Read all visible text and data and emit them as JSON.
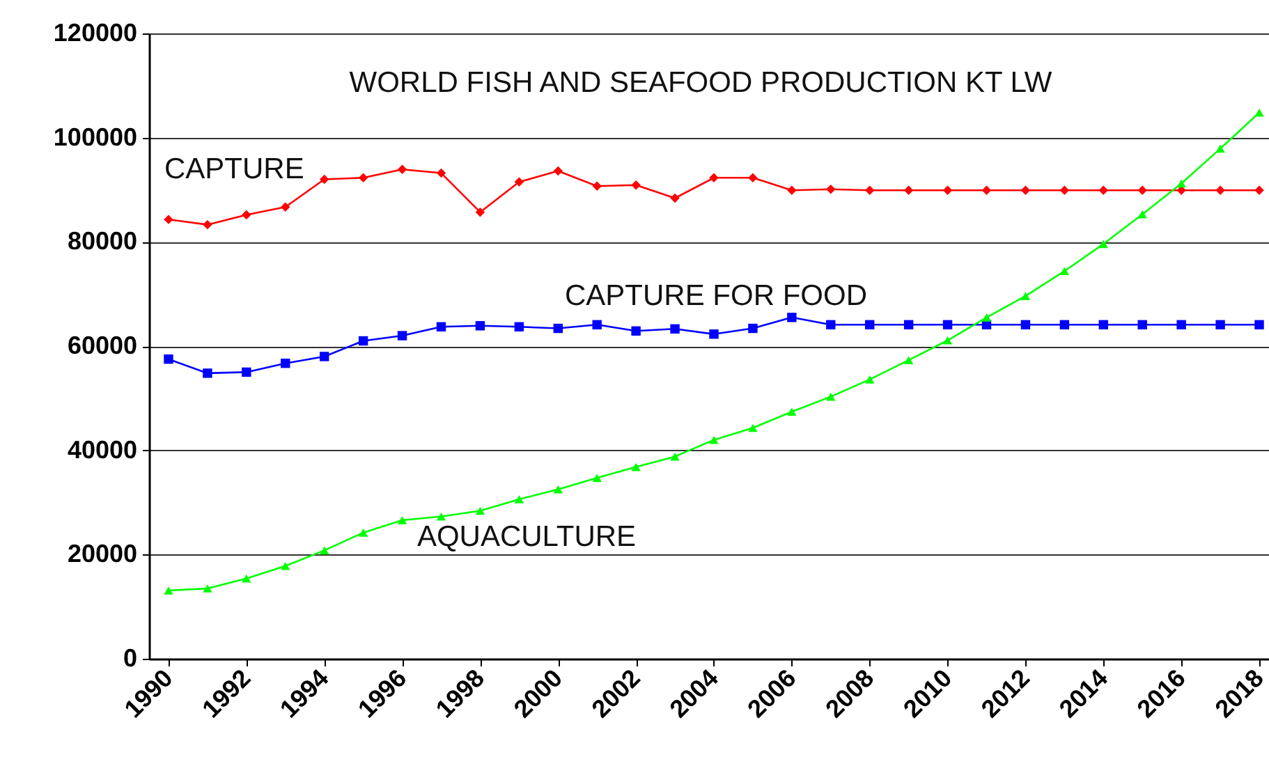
{
  "chart_data": {
    "type": "line",
    "title": "WORLD FISH AND SEAFOOD PRODUCTION KT LW",
    "x": [
      1990,
      1991,
      1992,
      1993,
      1994,
      1995,
      1996,
      1997,
      1998,
      1999,
      2000,
      2001,
      2002,
      2003,
      2004,
      2005,
      2006,
      2007,
      2008,
      2009,
      2010,
      2011,
      2012,
      2013,
      2014,
      2015,
      2016,
      2017,
      2018
    ],
    "series": [
      {
        "name": "CAPTURE",
        "color": "#ff0000",
        "marker": "diamond",
        "values": [
          84300,
          83300,
          85200,
          86700,
          92000,
          92300,
          93900,
          93200,
          85700,
          91500,
          93600,
          90700,
          90900,
          88400,
          92300,
          92300,
          89900,
          90100,
          89900,
          89900,
          89900,
          89900,
          89900,
          89900,
          89900,
          89900,
          89900,
          89900,
          89900
        ]
      },
      {
        "name": "CAPTURE FOR FOOD",
        "color": "#0000ff",
        "marker": "square",
        "values": [
          57500,
          54800,
          55000,
          56700,
          58000,
          61000,
          62000,
          63700,
          63900,
          63700,
          63400,
          64100,
          62900,
          63300,
          62300,
          63400,
          65500,
          64100,
          64100,
          64100,
          64100,
          64100,
          64100,
          64100,
          64100,
          64100,
          64100,
          64100,
          64100
        ]
      },
      {
        "name": "AQUACULTURE",
        "color": "#00ff00",
        "marker": "triangle",
        "values": [
          13100,
          13500,
          15400,
          17800,
          20800,
          24200,
          26600,
          27300,
          28400,
          30600,
          32500,
          34700,
          36800,
          38800,
          42000,
          44300,
          47400,
          50300,
          53600,
          57300,
          61100,
          65500,
          69600,
          74400,
          79600,
          85300,
          91200,
          97900,
          104800
        ]
      }
    ],
    "xlim": [
      1989.5,
      2018.25
    ],
    "xticks": [
      1990,
      1992,
      1994,
      1996,
      1998,
      2000,
      2002,
      2004,
      2006,
      2008,
      2010,
      2012,
      2014,
      2016,
      2018
    ],
    "ylim": [
      0,
      120000
    ],
    "yticks": [
      0,
      20000,
      40000,
      60000,
      80000,
      100000,
      120000
    ],
    "grid": "y"
  }
}
